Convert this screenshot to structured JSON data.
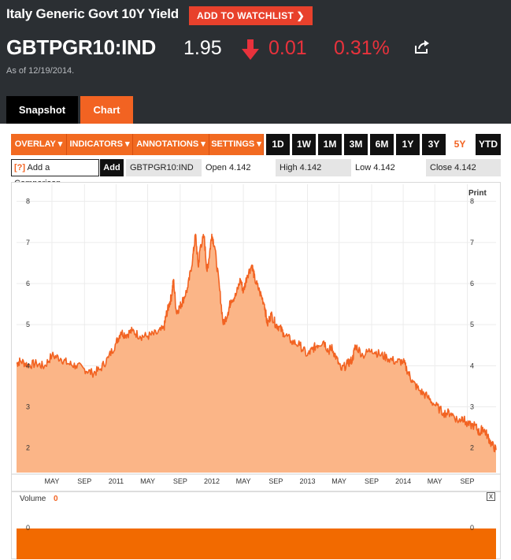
{
  "header": {
    "title": "Italy Generic Govt 10Y Yield",
    "watchlist_label": "ADD TO WATCHLIST",
    "ticker": "GBTPGR10:IND",
    "price": "1.95",
    "change": "0.01",
    "change_pct": "0.31%",
    "as_of": "As of 12/19/2014."
  },
  "tabs": {
    "snapshot": "Snapshot",
    "chart": "Chart"
  },
  "toolbar": {
    "menus": [
      "OVERLAY ▾",
      "INDICATORS ▾",
      "ANNOTATIONS ▾",
      "SETTINGS ▾"
    ],
    "ranges": [
      "1D",
      "1W",
      "1M",
      "3M",
      "6M",
      "1Y",
      "3Y",
      "5Y",
      "YTD"
    ],
    "active_range": "5Y"
  },
  "info": {
    "compare_q": "[?]",
    "compare_label": "Add a Comparison",
    "add_label": "Add",
    "symbol": "GBTPGR10:IND",
    "open": "Open 4.142",
    "high": "High 4.142",
    "low": "Low 4.142",
    "close": "Close 4.142"
  },
  "chart_meta": {
    "print_label": "Print",
    "volume_label": "Volume",
    "volume_value": "0",
    "close_symbol": "x"
  },
  "colors": {
    "accent": "#f26322",
    "fill": "#fbb587",
    "negative": "#e8323c",
    "header_bg": "#2b2f33"
  },
  "chart_data": {
    "type": "area",
    "title": "",
    "xlabel": "",
    "ylabel": "",
    "ylim": [
      1.4,
      8.3
    ],
    "y_ticks": [
      2,
      3,
      4,
      5,
      6,
      7,
      8
    ],
    "x_ticks": [
      "MAY",
      "SEP",
      "2011",
      "MAY",
      "SEP",
      "2012",
      "MAY",
      "SEP",
      "2013",
      "MAY",
      "SEP",
      "2014",
      "MAY",
      "SEP"
    ],
    "x_tick_pos": [
      1.33,
      1.67,
      2.0,
      2.33,
      2.67,
      3.0,
      3.33,
      3.67,
      4.0,
      4.33,
      4.67,
      5.0,
      5.33,
      5.67
    ],
    "x_range": [
      0.96,
      5.97
    ],
    "x_unit": "years since Jan 2010",
    "series": [
      {
        "name": "",
        "x": [
          0.96,
          1.0,
          1.08,
          1.17,
          1.25,
          1.33,
          1.42,
          1.5,
          1.58,
          1.67,
          1.75,
          1.83,
          1.92,
          2.0,
          2.05,
          2.1,
          2.17,
          2.25,
          2.33,
          2.42,
          2.5,
          2.52,
          2.55,
          2.58,
          2.6,
          2.63,
          2.67,
          2.7,
          2.75,
          2.8,
          2.83,
          2.86,
          2.88,
          2.92,
          2.95,
          2.97,
          3.0,
          3.03,
          3.08,
          3.12,
          3.17,
          3.2,
          3.25,
          3.3,
          3.33,
          3.37,
          3.42,
          3.45,
          3.5,
          3.55,
          3.58,
          3.62,
          3.67,
          3.7,
          3.75,
          3.83,
          3.92,
          4.0,
          4.05,
          4.1,
          4.17,
          4.22,
          4.25,
          4.3,
          4.35,
          4.42,
          4.47,
          4.5,
          4.58,
          4.67,
          4.75,
          4.83,
          4.92,
          5.0,
          5.05,
          5.1,
          5.17,
          5.25,
          5.33,
          5.42,
          5.5,
          5.58,
          5.62,
          5.67,
          5.75,
          5.8,
          5.83,
          5.88,
          5.92,
          5.97
        ],
        "values": [
          4.05,
          4.12,
          4.02,
          4.05,
          3.98,
          4.25,
          4.18,
          4.05,
          4.0,
          3.92,
          3.82,
          3.9,
          4.2,
          4.55,
          4.82,
          4.75,
          4.85,
          4.72,
          4.72,
          4.78,
          4.9,
          5.2,
          5.45,
          5.7,
          6.1,
          5.3,
          5.45,
          5.6,
          5.9,
          6.6,
          7.2,
          6.4,
          6.9,
          7.15,
          6.3,
          6.6,
          7.2,
          6.9,
          5.9,
          5.0,
          5.3,
          5.6,
          5.7,
          6.1,
          5.8,
          6.2,
          6.45,
          6.1,
          5.8,
          5.5,
          5.0,
          5.25,
          5.0,
          4.95,
          4.8,
          4.6,
          4.5,
          4.25,
          4.4,
          4.5,
          4.6,
          4.35,
          4.45,
          4.2,
          3.9,
          4.05,
          4.15,
          4.5,
          4.25,
          4.4,
          4.28,
          4.2,
          4.1,
          4.1,
          3.85,
          3.6,
          3.4,
          3.25,
          3.05,
          2.85,
          2.85,
          2.65,
          2.75,
          2.55,
          2.55,
          2.35,
          2.5,
          2.3,
          2.1,
          1.95
        ]
      }
    ]
  }
}
